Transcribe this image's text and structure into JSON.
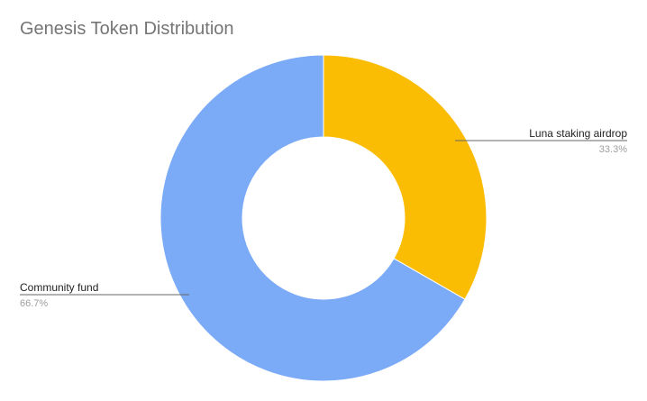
{
  "chart_data": {
    "type": "pie",
    "donut": true,
    "title": "Genesis Token Distribution",
    "legend": "none",
    "slices": [
      {
        "label": "Luna staking airdrop",
        "value": 33.3,
        "display": "33.3%",
        "color": "#fbbc04"
      },
      {
        "label": "Community fund",
        "value": 66.7,
        "display": "66.7%",
        "color": "#7baaf7"
      }
    ]
  }
}
